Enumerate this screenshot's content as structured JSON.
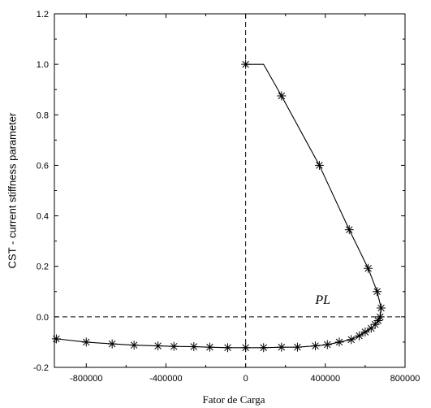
{
  "chart_data": {
    "type": "line",
    "title": "",
    "xlabel": "Fator de Carga",
    "ylabel": "CST - current stiffness parameter",
    "xlim": [
      -960000,
      800000
    ],
    "ylim": [
      -0.2,
      1.2
    ],
    "xticks": [
      -800000,
      -400000,
      0,
      400000,
      800000
    ],
    "xtick_labels": [
      "-800000",
      "-400000",
      "0",
      "400000",
      "800000"
    ],
    "yticks": [
      -0.2,
      0.0,
      0.2,
      0.4,
      0.6,
      0.8,
      1.0,
      1.2
    ],
    "ytick_labels": [
      "-0.2",
      "0.0",
      "0.2",
      "0.4",
      "0.6",
      "0.8",
      "1.0",
      "1.2"
    ],
    "grid": false,
    "annotations": [
      {
        "text": "PL",
        "x": 640000,
        "y": 0.035
      }
    ],
    "reference_lines": [
      {
        "orientation": "vertical",
        "value": 0,
        "style": "dashed"
      },
      {
        "orientation": "horizontal",
        "value": 0,
        "style": "dashed"
      }
    ],
    "series": [
      {
        "marker": "asterisk",
        "x": [
          0,
          90000,
          180000,
          370000,
          520000,
          615000,
          660000,
          680000,
          675000,
          665000,
          650000,
          630000,
          600000,
          570000,
          530000,
          470000,
          410000,
          350000,
          260000,
          180000,
          90000,
          0,
          -90000,
          -180000,
          -260000,
          -360000,
          -440000,
          -560000,
          -670000,
          -800000,
          -950000
        ],
        "y": [
          1.0,
          1.0,
          0.875,
          0.6,
          0.345,
          0.192,
          0.1,
          0.035,
          0.0,
          -0.015,
          -0.03,
          -0.045,
          -0.06,
          -0.075,
          -0.09,
          -0.1,
          -0.11,
          -0.115,
          -0.12,
          -0.12,
          -0.122,
          -0.122,
          -0.122,
          -0.12,
          -0.118,
          -0.117,
          -0.115,
          -0.112,
          -0.107,
          -0.1,
          -0.087
        ],
        "marker_indices": [
          0,
          2,
          3,
          4,
          5,
          6,
          7,
          8,
          9,
          10,
          11,
          12,
          13,
          14,
          15,
          16,
          17,
          18,
          19,
          20,
          21,
          22,
          23,
          24,
          25,
          26,
          27,
          28,
          29,
          30
        ]
      }
    ]
  }
}
